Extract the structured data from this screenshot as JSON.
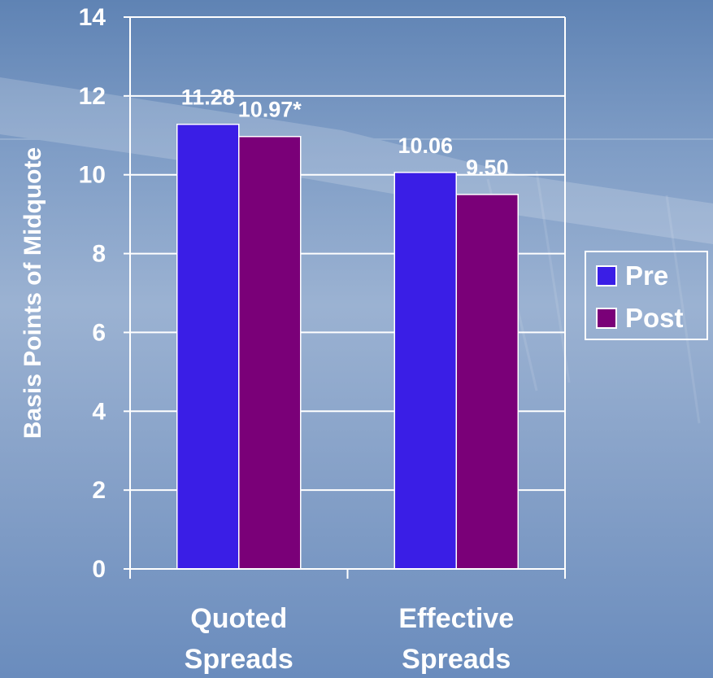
{
  "chart_data": {
    "type": "bar",
    "categories": [
      "Quoted\nSpreads",
      "Effective\nSpreads"
    ],
    "series": [
      {
        "name": "Pre",
        "values": [
          11.28,
          10.06
        ],
        "labels": [
          "11.28",
          "10.06"
        ],
        "color": "#3a1ee6"
      },
      {
        "name": "Post",
        "values": [
          10.97,
          9.5
        ],
        "labels": [
          "10.97*",
          "9.50"
        ],
        "color": "#7a0078"
      }
    ],
    "xlabel": "",
    "ylabel": "Basis Points of Midquote",
    "ylim": [
      0,
      14
    ],
    "yticks": [
      0,
      2,
      4,
      6,
      8,
      10,
      12,
      14
    ],
    "grid": true,
    "legend_position": "right"
  },
  "colors": {
    "axis": "#ffffff",
    "grid": "#ffffff",
    "text": "#ffffff"
  }
}
